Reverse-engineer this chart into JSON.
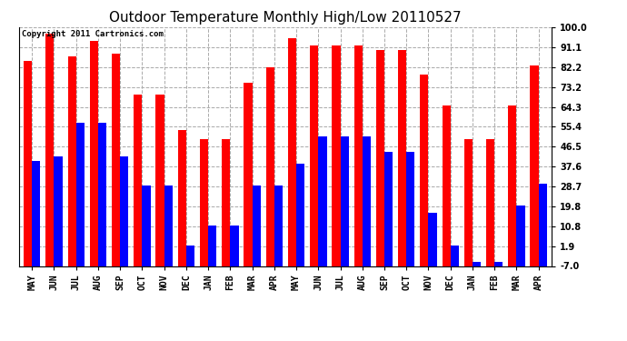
{
  "title": "Outdoor Temperature Monthly High/Low 20110527",
  "copyright": "Copyright 2011 Cartronics.com",
  "months": [
    "MAY",
    "JUN",
    "JUL",
    "AUG",
    "SEP",
    "OCT",
    "NOV",
    "DEC",
    "JAN",
    "FEB",
    "MAR",
    "APR",
    "MAY",
    "JUN",
    "JUL",
    "AUG",
    "SEP",
    "OCT",
    "NOV",
    "DEC",
    "JAN",
    "FEB",
    "MAR",
    "APR"
  ],
  "highs": [
    85,
    97,
    87,
    94,
    88,
    70,
    70,
    54,
    50,
    50,
    75,
    82,
    95,
    92,
    92,
    92,
    90,
    90,
    79,
    65,
    50,
    50,
    65,
    83
  ],
  "lows": [
    40,
    42,
    57,
    57,
    42,
    29,
    29,
    2,
    11,
    11,
    29,
    29,
    39,
    51,
    51,
    51,
    44,
    44,
    17,
    2,
    -5,
    -5,
    20,
    30
  ],
  "bar_color_high": "#ff0000",
  "bar_color_low": "#0000ff",
  "background_color": "#ffffff",
  "grid_color": "#aaaaaa",
  "yticks": [
    -7.0,
    1.9,
    10.8,
    19.8,
    28.7,
    37.6,
    46.5,
    55.4,
    64.3,
    73.2,
    82.2,
    91.1,
    100.0
  ],
  "ymin": -7.0,
  "ymax": 100.0,
  "title_fontsize": 11,
  "copyright_fontsize": 6.5,
  "tick_label_fontsize": 7,
  "bar_width": 0.38,
  "figwidth": 6.9,
  "figheight": 3.75,
  "dpi": 100
}
